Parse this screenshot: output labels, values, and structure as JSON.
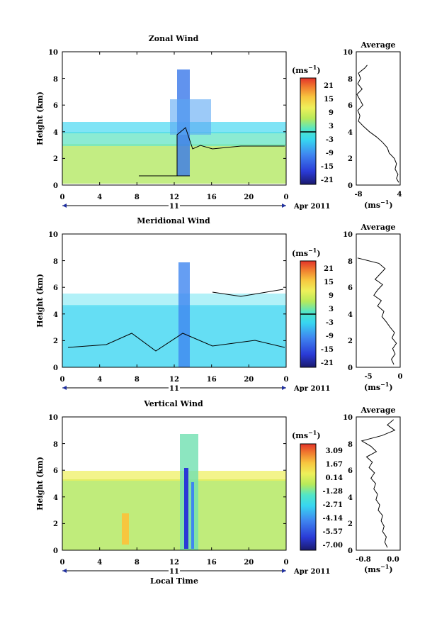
{
  "chart_data": [
    {
      "type": "heatmap",
      "title": "Zonal Wind",
      "ylabel": "Height (km)",
      "ylim": [
        0,
        10
      ],
      "yticks": [
        "0",
        "2",
        "4",
        "6",
        "8",
        "10"
      ],
      "xlim": [
        0,
        24
      ],
      "xticks": [
        "0",
        "4",
        "8",
        "12",
        "16",
        "20",
        "0"
      ],
      "day_label": "11",
      "date_label": "Apr 2011",
      "colorbar": {
        "unit_label": "(ms",
        "unit_exp": "−1",
        "unit_close": ")",
        "ticks": [
          "21",
          "15",
          "9",
          "3",
          "-3",
          "-9",
          "-15",
          "-21"
        ],
        "range": [
          -24,
          24
        ],
        "zero_line": true
      },
      "average": {
        "title": "Average",
        "xlim": [
          -8,
          4
        ],
        "xticks": [
          "-8",
          "4"
        ],
        "xtick_values": [
          -8,
          4
        ],
        "yticks": [
          "0",
          "2",
          "4",
          "6",
          "8",
          "10"
        ],
        "xlabel": "(ms",
        "xlabel_exp": "−1",
        "xlabel_close": ")",
        "profile": {
          "height": [
            0.2,
            0.5,
            0.8,
            1.2,
            1.6,
            2.0,
            2.4,
            2.8,
            3.2,
            3.6,
            4.0,
            4.4,
            4.8,
            5.2,
            5.6,
            6.0,
            6.4,
            6.8,
            7.2,
            7.6,
            8.0,
            8.4,
            8.8,
            9.0
          ],
          "value": [
            3.6,
            3.0,
            3.4,
            2.6,
            3.0,
            2.4,
            1.0,
            0.5,
            -0.8,
            -2.4,
            -4.4,
            -6.0,
            -7.4,
            -7.0,
            -7.6,
            -6.2,
            -7.0,
            -7.8,
            -6.4,
            -7.6,
            -6.8,
            -7.4,
            -5.6,
            -5.0
          ]
        }
      }
    },
    {
      "type": "heatmap",
      "title": "Meridional Wind",
      "ylabel": "Height (km)",
      "ylim": [
        0,
        10
      ],
      "yticks": [
        "0",
        "2",
        "4",
        "6",
        "8",
        "10"
      ],
      "xlim": [
        0,
        24
      ],
      "xticks": [
        "0",
        "4",
        "8",
        "12",
        "16",
        "20",
        "0"
      ],
      "day_label": "11",
      "date_label": "Apr 2011",
      "colorbar": {
        "unit_label": "(ms",
        "unit_exp": "−1",
        "unit_close": ")",
        "ticks": [
          "21",
          "15",
          "9",
          "3",
          "-3",
          "-9",
          "-15",
          "-21"
        ],
        "range": [
          -24,
          24
        ],
        "zero_line": true
      },
      "average": {
        "title": "Average",
        "xlim": [
          -7,
          0
        ],
        "xticks": [
          "-5",
          "0"
        ],
        "xtick_values": [
          -5,
          0
        ],
        "yticks": [
          "0",
          "2",
          "4",
          "6",
          "8",
          "10"
        ],
        "xlabel": "(ms",
        "xlabel_exp": "−1",
        "xlabel_close": ")",
        "profile": {
          "height": [
            0.2,
            0.6,
            1.0,
            1.4,
            1.8,
            2.2,
            2.6,
            3.0,
            3.4,
            3.8,
            4.2,
            4.6,
            5.0,
            5.4,
            5.8,
            6.2,
            6.6,
            7.0,
            7.4,
            7.8,
            8.2
          ],
          "value": [
            -1.0,
            -1.4,
            -0.8,
            -1.2,
            -0.6,
            -1.3,
            -0.9,
            -1.6,
            -2.2,
            -2.9,
            -2.6,
            -3.6,
            -3.0,
            -4.2,
            -3.6,
            -2.8,
            -4.0,
            -3.2,
            -2.4,
            -3.4,
            -6.8
          ]
        }
      }
    },
    {
      "type": "heatmap",
      "title": "Vertical Wind",
      "ylabel": "Height (km)",
      "ylim": [
        0,
        10
      ],
      "yticks": [
        "0",
        "2",
        "4",
        "6",
        "8",
        "10"
      ],
      "xlim": [
        0,
        24
      ],
      "xticks": [
        "0",
        "4",
        "8",
        "12",
        "16",
        "20",
        "0"
      ],
      "day_label": "11",
      "date_label": "Apr 2011",
      "xlabel": "Local Time",
      "colorbar": {
        "unit_label": "(ms",
        "unit_exp": "−1",
        "unit_close": ")",
        "ticks": [
          "3.09",
          "1.67",
          "0.14",
          "-1.28",
          "-2.71",
          "-4.14",
          "-5.57",
          "-7.00"
        ],
        "range": [
          -7.7,
          3.8
        ],
        "zero_line": false
      },
      "average": {
        "title": "Average",
        "xlim": [
          -1.0,
          0.2
        ],
        "xticks": [
          "-0.8",
          "0.0"
        ],
        "xtick_values": [
          -0.8,
          0.0
        ],
        "yticks": [
          "0",
          "2",
          "4",
          "6",
          "8",
          "10"
        ],
        "xlabel": "(ms",
        "xlabel_exp": "−1",
        "xlabel_close": ")",
        "profile": {
          "height": [
            0.2,
            0.6,
            1.0,
            1.4,
            1.8,
            2.2,
            2.6,
            3.0,
            3.4,
            3.8,
            4.2,
            4.6,
            5.0,
            5.4,
            5.8,
            6.2,
            6.6,
            7.0,
            7.4,
            7.8,
            8.2,
            8.6,
            9.0,
            9.4,
            9.8
          ],
          "value": [
            -0.15,
            -0.22,
            -0.18,
            -0.28,
            -0.24,
            -0.32,
            -0.28,
            -0.4,
            -0.36,
            -0.46,
            -0.42,
            -0.52,
            -0.47,
            -0.6,
            -0.5,
            -0.65,
            -0.56,
            -0.72,
            -0.45,
            -0.6,
            -0.85,
            -0.3,
            0.05,
            -0.15,
            0.02
          ]
        }
      }
    }
  ]
}
